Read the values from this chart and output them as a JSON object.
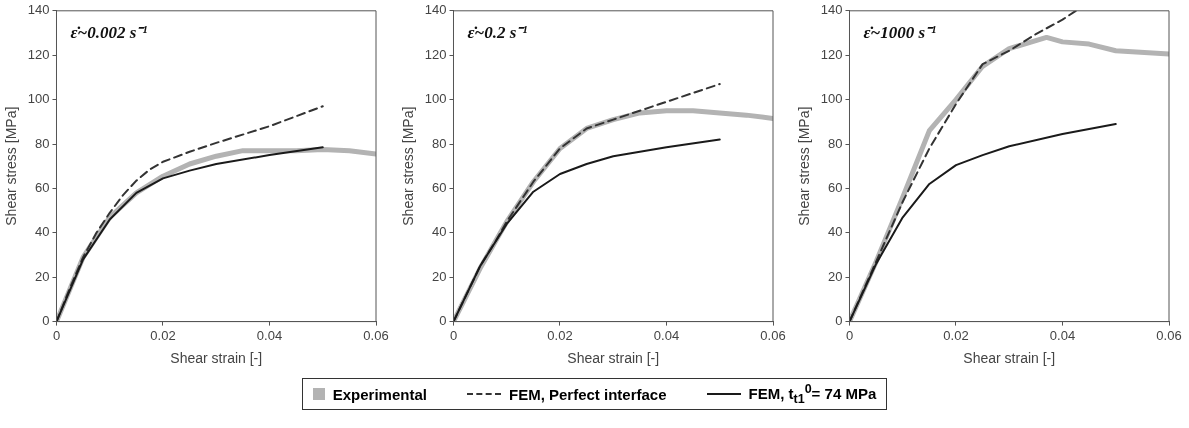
{
  "chart_data": [
    {
      "type": "line",
      "title": "ε̇~0.002 s⁻¹",
      "xlabel": "Shear strain [-]",
      "ylabel": "Shear stress [MPa]",
      "xlim": [
        0,
        0.06
      ],
      "xticks": [
        0,
        0.02,
        0.04,
        0.06
      ],
      "ylim": [
        0,
        140
      ],
      "yticks": [
        0,
        20,
        40,
        60,
        80,
        100,
        120,
        140
      ],
      "legend": "bottom",
      "series": [
        {
          "name": "Experimental",
          "color": "#b3b3b3",
          "x": [
            0,
            0.005,
            0.01,
            0.015,
            0.02,
            0.025,
            0.03,
            0.035,
            0.04,
            0.045,
            0.05,
            0.055,
            0.06
          ],
          "values": [
            0,
            29,
            47,
            58,
            65.5,
            71,
            74.5,
            77,
            77,
            77,
            77.5,
            77,
            75.5
          ]
        },
        {
          "name": "FEM, Perfect interface",
          "color": "#333333",
          "line_style": "dashed",
          "x": [
            0,
            0.0025,
            0.005,
            0.0075,
            0.01,
            0.0125,
            0.015,
            0.0175,
            0.02,
            0.025,
            0.03,
            0.04,
            0.05
          ],
          "values": [
            0,
            15,
            29,
            40,
            49,
            57,
            63.5,
            68.5,
            72,
            76.5,
            80.5,
            88,
            97
          ]
        },
        {
          "name": "FEM, t$_{t1}$$^{0}$= 74 MPa",
          "color": "#1a1a1a",
          "line_style": "solid",
          "x": [
            0,
            0.005,
            0.01,
            0.015,
            0.02,
            0.025,
            0.03,
            0.04,
            0.05
          ],
          "values": [
            0,
            28,
            46,
            58,
            64.5,
            68,
            71,
            75,
            78.5
          ]
        }
      ]
    },
    {
      "type": "line",
      "title": "ε̇~0.2 s⁻¹",
      "xlabel": "Shear strain [-]",
      "ylabel": "Shear stress [MPa]",
      "xlim": [
        0,
        0.06
      ],
      "xticks": [
        0,
        0.02,
        0.04,
        0.06
      ],
      "ylim": [
        0,
        140
      ],
      "yticks": [
        0,
        20,
        40,
        60,
        80,
        100,
        120,
        140
      ],
      "series": [
        {
          "color": "#b3b3b3",
          "x": [
            0,
            0.005,
            0.008,
            0.01,
            0.015,
            0.02,
            0.025,
            0.03,
            0.035,
            0.04,
            0.045,
            0.05,
            0.055,
            0.06
          ],
          "values": [
            0,
            24,
            36.6,
            45,
            63,
            78,
            87,
            91,
            94,
            95,
            95,
            94,
            93,
            91.5
          ]
        },
        {
          "color": "#333333",
          "line_style": "dashed",
          "x": [
            0,
            0.005,
            0.008,
            0.01,
            0.015,
            0.02,
            0.025,
            0.03,
            0.04,
            0.05
          ],
          "values": [
            0,
            25,
            36.6,
            45,
            63,
            78,
            87,
            91,
            99,
            107
          ]
        },
        {
          "color": "#1a1a1a",
          "line_style": "solid",
          "x": [
            0,
            0.005,
            0.01,
            0.015,
            0.02,
            0.025,
            0.03,
            0.04,
            0.05
          ],
          "values": [
            0,
            25,
            44,
            58.5,
            66.5,
            71,
            74.5,
            78.5,
            82
          ]
        }
      ]
    },
    {
      "type": "line",
      "title": "ε̇~1000 s⁻¹",
      "xlabel": "Shear strain [-]",
      "ylabel": "Shear stress [MPa]",
      "xlim": [
        0,
        0.06
      ],
      "xticks": [
        0,
        0.02,
        0.04,
        0.06
      ],
      "ylim": [
        0,
        140
      ],
      "yticks": [
        0,
        20,
        40,
        60,
        80,
        100,
        120,
        140
      ],
      "series": [
        {
          "color": "#b3b3b3",
          "x": [
            0,
            0.005,
            0.01,
            0.015,
            0.02,
            0.025,
            0.03,
            0.037,
            0.04,
            0.045,
            0.05,
            0.06
          ],
          "values": [
            0,
            27,
            56,
            86,
            100,
            115,
            123,
            128,
            126,
            125,
            122,
            120.5
          ]
        },
        {
          "color": "#333333",
          "line_style": "dashed",
          "x": [
            0,
            0.005,
            0.01,
            0.015,
            0.02,
            0.025,
            0.03,
            0.035,
            0.04,
            0.0425
          ],
          "values": [
            0,
            27,
            54,
            78,
            98,
            116,
            122,
            129.5,
            136,
            140
          ]
        },
        {
          "color": "#1a1a1a",
          "line_style": "solid",
          "x": [
            0,
            0.005,
            0.01,
            0.015,
            0.02,
            0.025,
            0.03,
            0.04,
            0.05
          ],
          "values": [
            0,
            26,
            47,
            62,
            70.5,
            75,
            79,
            84.5,
            89
          ]
        }
      ]
    }
  ]
}
